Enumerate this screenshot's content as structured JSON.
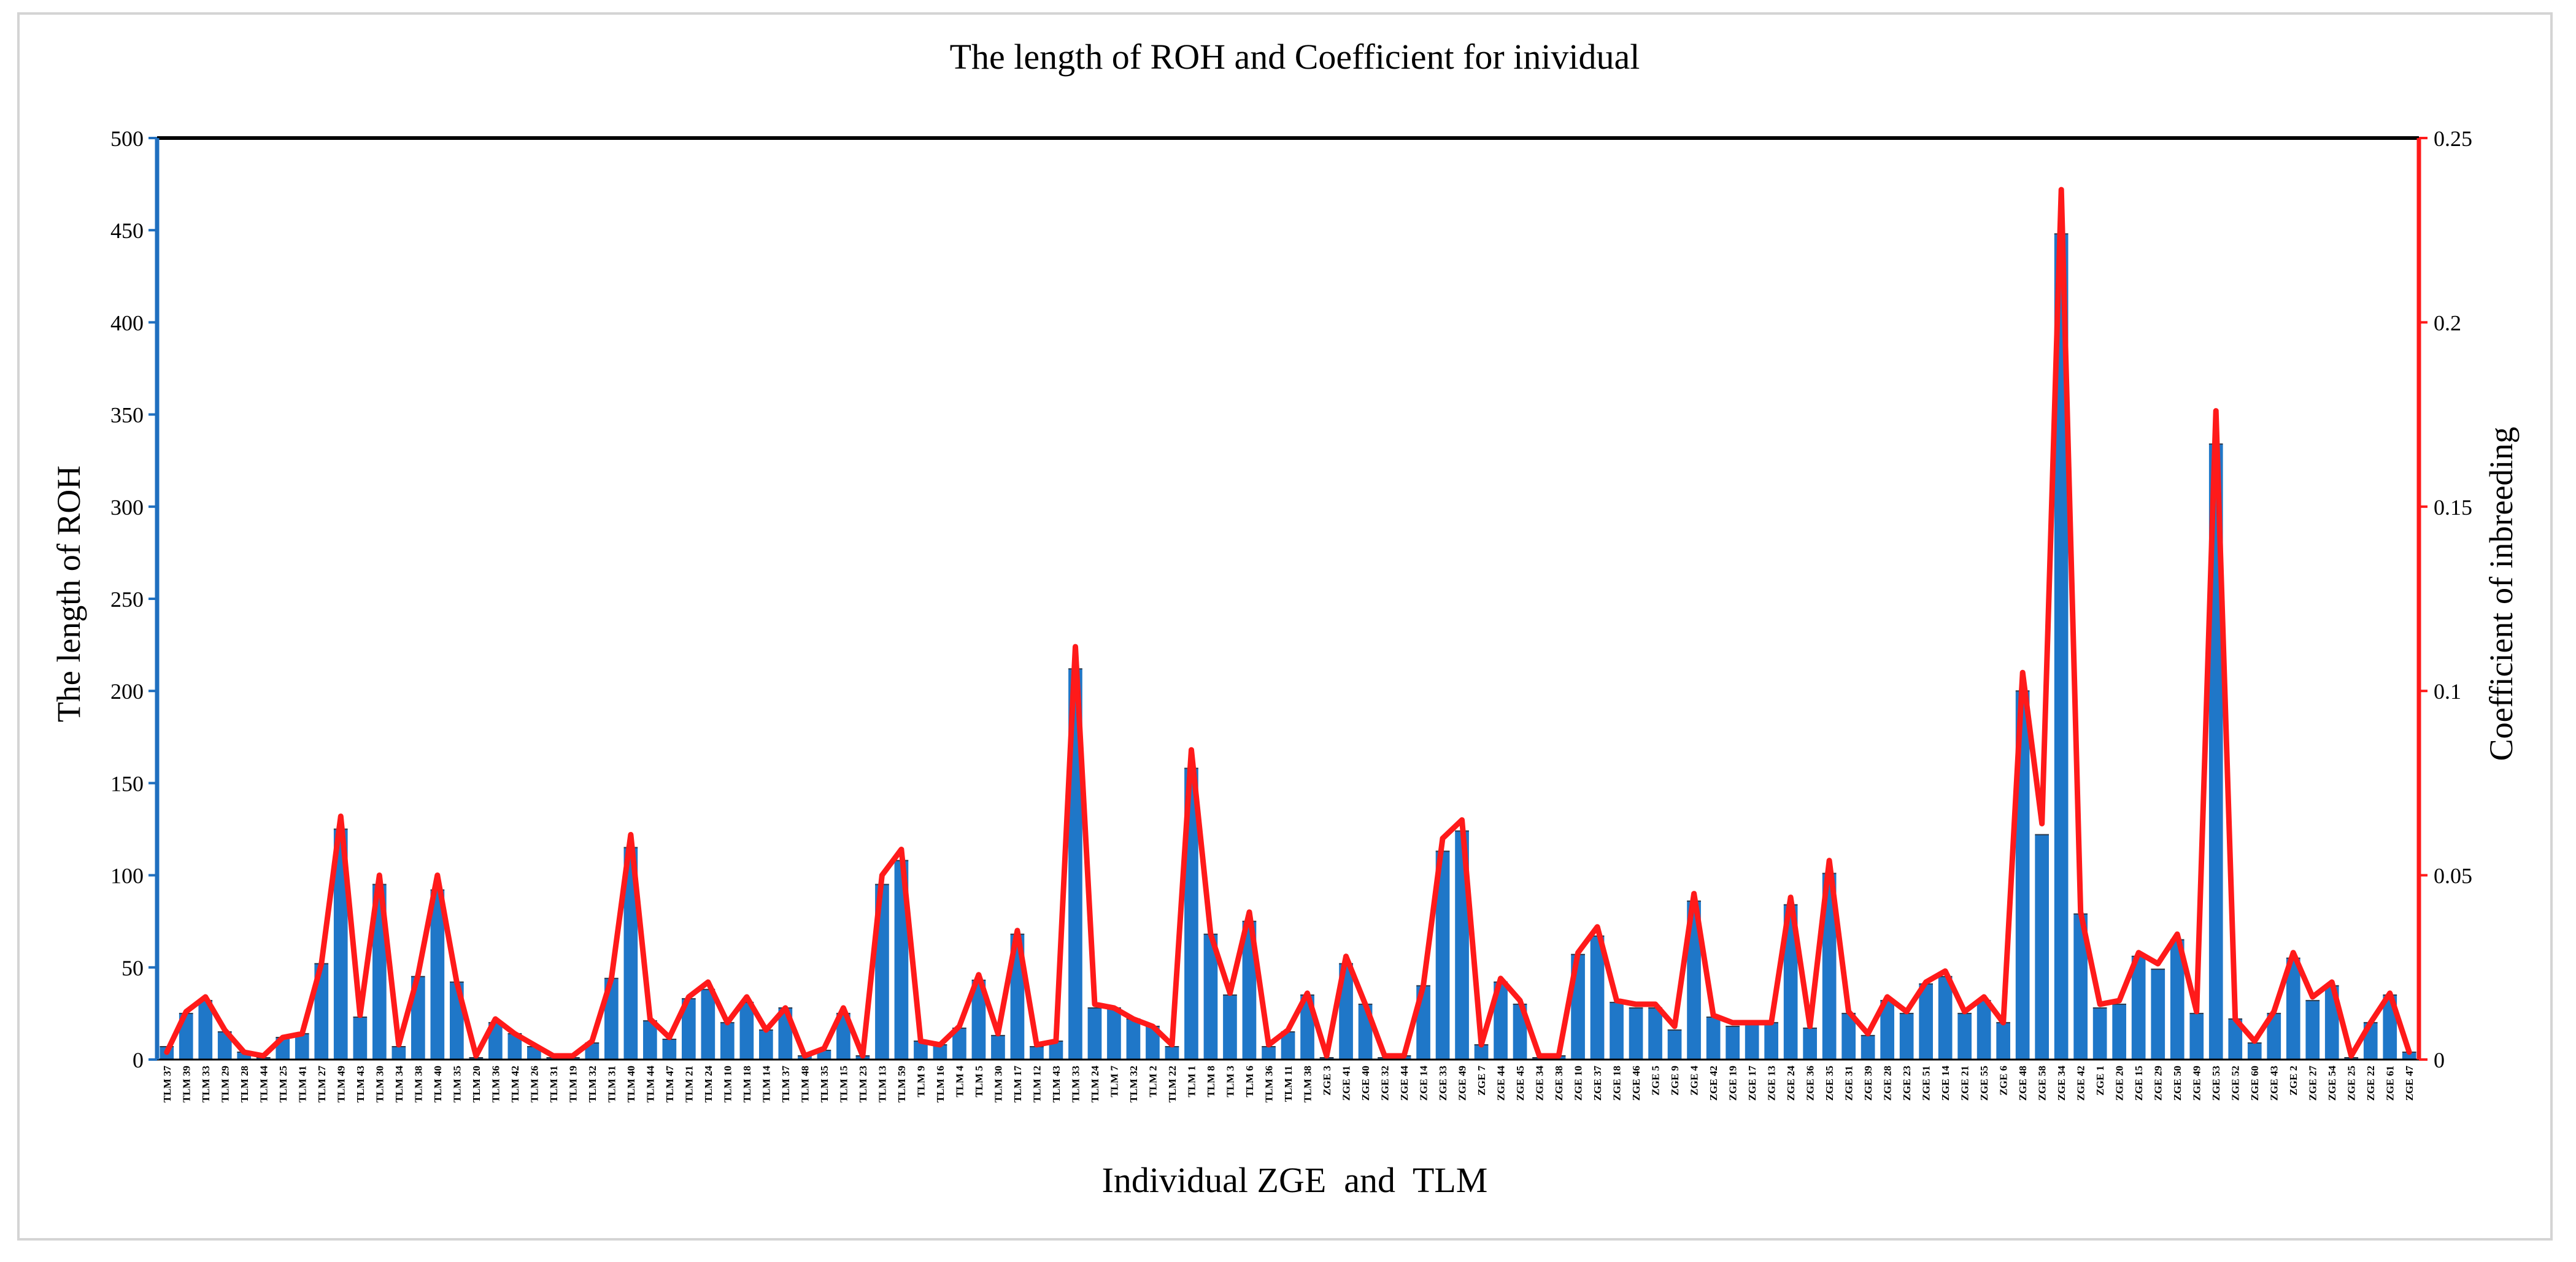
{
  "colors": {
    "bar": "#1f77c8",
    "bar_edge": "#2d3a4a",
    "line": "#ff1a1a",
    "left_axis": "#1f6fbf",
    "right_axis": "#ff1a1a",
    "top_border": "#000000"
  },
  "chart_data": {
    "type": "bar",
    "title": "The length of ROH and Coefficient for inividual",
    "xlabel": "Individual ZGE  and  TLM",
    "ylabel": "The length of ROH",
    "y2label": "Coefficient of inbreeding",
    "ylim": [
      0,
      500
    ],
    "y2lim": [
      0,
      0.25
    ],
    "yticks": [
      "0",
      "50",
      "100",
      "150",
      "200",
      "250",
      "300",
      "350",
      "400",
      "450",
      "500"
    ],
    "y2ticks": [
      "0",
      "0.05",
      "0.1",
      "0.15",
      "0.2",
      "0.25"
    ],
    "legend": "none",
    "categories": [
      "TLM 37",
      "TLM 39",
      "TLM 33",
      "TLM 29",
      "TLM 28",
      "TLM 44",
      "TLM 25",
      "TLM 41",
      "TLM 27",
      "TLM 49",
      "TLM 43",
      "TLM 30",
      "TLM 34",
      "TLM 38",
      "TLM 40",
      "TLM 35",
      "TLM 20",
      "TLM 36",
      "TLM 42",
      "TLM 26",
      "TLM 31",
      "TLM 19",
      "TLM 32",
      "TLM 31",
      "TLM 40",
      "TLM 44",
      "TLM 47",
      "TLM 21",
      "TLM 24",
      "TLM 10",
      "TLM 18",
      "TLM 14",
      "TLM 37",
      "TLM 48",
      "TLM 35",
      "TLM 15",
      "TLM 23",
      "TLM 13",
      "TLM 59",
      "TLM 9",
      "TLM 16",
      "TLM 4",
      "TLM 5",
      "TLM 30",
      "TLM 17",
      "TLM 12",
      "TLM 43",
      "TLM 33",
      "TLM 24",
      "TLM 7",
      "TLM 32",
      "TLM 2",
      "TLM 22",
      "TLM 1",
      "TLM 8",
      "TLM 3",
      "TLM 6",
      "TLM 36",
      "TLM 11",
      "TLM 38",
      "ZGE 3",
      "ZGE 41",
      "ZGE 40",
      "ZGE 32",
      "ZGE 44",
      "ZGE 14",
      "ZGE 33",
      "ZGE 49",
      "ZGE 7",
      "ZGE 44",
      "ZGE 45",
      "ZGE 34",
      "ZGE 38",
      "ZGE 10",
      "ZGE 37",
      "ZGE 18",
      "ZGE 46",
      "ZGE 5",
      "ZGE 9",
      "ZGE 4",
      "ZGE 42",
      "ZGE 19",
      "ZGE 17",
      "ZGE 13",
      "ZGE 24",
      "ZGE 36",
      "ZGE 35",
      "ZGE 31",
      "ZGE 39",
      "ZGE 28",
      "ZGE 23",
      "ZGE 51",
      "ZGE 14",
      "ZGE 21",
      "ZGE 55",
      "ZGE 6",
      "ZGE 48",
      "ZGE 58",
      "ZGE 34",
      "ZGE 42",
      "ZGE 1",
      "ZGE 20",
      "ZGE 15",
      "ZGE 29",
      "ZGE 50",
      "ZGE 49",
      "ZGE 53",
      "ZGE 52",
      "ZGE 60",
      "ZGE 43",
      "ZGE 2",
      "ZGE 27",
      "ZGE 54",
      "ZGE 25",
      "ZGE 22",
      "ZGE 61",
      "ZGE 47"
    ],
    "series": [
      {
        "name": "The length of ROH",
        "type": "bar",
        "axis": "left",
        "values": [
          7,
          25,
          32,
          15,
          4,
          1,
          12,
          14,
          52,
          125,
          23,
          95,
          7,
          45,
          92,
          42,
          1,
          20,
          14,
          7,
          1,
          1,
          9,
          44,
          115,
          21,
          11,
          33,
          38,
          20,
          31,
          16,
          28,
          2,
          5,
          25,
          2,
          95,
          108,
          10,
          8,
          17,
          43,
          13,
          68,
          7,
          10,
          212,
          28,
          28,
          22,
          18,
          7,
          158,
          68,
          35,
          75,
          7,
          15,
          35,
          1,
          52,
          30,
          1,
          2,
          40,
          113,
          124,
          8,
          42,
          30,
          1,
          2,
          57,
          67,
          31,
          28,
          28,
          16,
          86,
          23,
          18,
          20,
          20,
          84,
          17,
          101,
          25,
          13,
          32,
          25,
          41,
          45,
          25,
          32,
          20,
          200,
          122,
          448,
          79,
          28,
          30,
          56,
          49,
          65,
          25,
          334,
          22,
          9,
          25,
          55,
          32,
          40,
          1,
          20,
          35,
          4
        ]
      },
      {
        "name": "Coefficient of inbreeding",
        "type": "line",
        "axis": "right",
        "values": [
          0.002,
          0.013,
          0.017,
          0.008,
          0.002,
          0.001,
          0.006,
          0.007,
          0.026,
          0.066,
          0.012,
          0.05,
          0.004,
          0.023,
          0.05,
          0.021,
          0.001,
          0.011,
          0.007,
          0.004,
          0.001,
          0.001,
          0.005,
          0.022,
          0.061,
          0.011,
          0.006,
          0.017,
          0.021,
          0.01,
          0.017,
          0.008,
          0.014,
          0.001,
          0.003,
          0.014,
          0.001,
          0.05,
          0.057,
          0.005,
          0.004,
          0.009,
          0.023,
          0.007,
          0.035,
          0.004,
          0.005,
          0.112,
          0.015,
          0.014,
          0.011,
          0.009,
          0.004,
          0.084,
          0.034,
          0.018,
          0.04,
          0.004,
          0.008,
          0.018,
          0.001,
          0.028,
          0.015,
          0.001,
          0.001,
          0.02,
          0.06,
          0.065,
          0.004,
          0.022,
          0.016,
          0.001,
          0.001,
          0.029,
          0.036,
          0.016,
          0.015,
          0.015,
          0.009,
          0.045,
          0.012,
          0.01,
          0.01,
          0.01,
          0.044,
          0.009,
          0.054,
          0.013,
          0.007,
          0.017,
          0.013,
          0.021,
          0.024,
          0.013,
          0.017,
          0.01,
          0.105,
          0.064,
          0.236,
          0.04,
          0.015,
          0.016,
          0.029,
          0.026,
          0.034,
          0.013,
          0.176,
          0.011,
          0.005,
          0.013,
          0.029,
          0.017,
          0.021,
          0.001,
          0.01,
          0.018,
          0.002
        ]
      }
    ]
  }
}
